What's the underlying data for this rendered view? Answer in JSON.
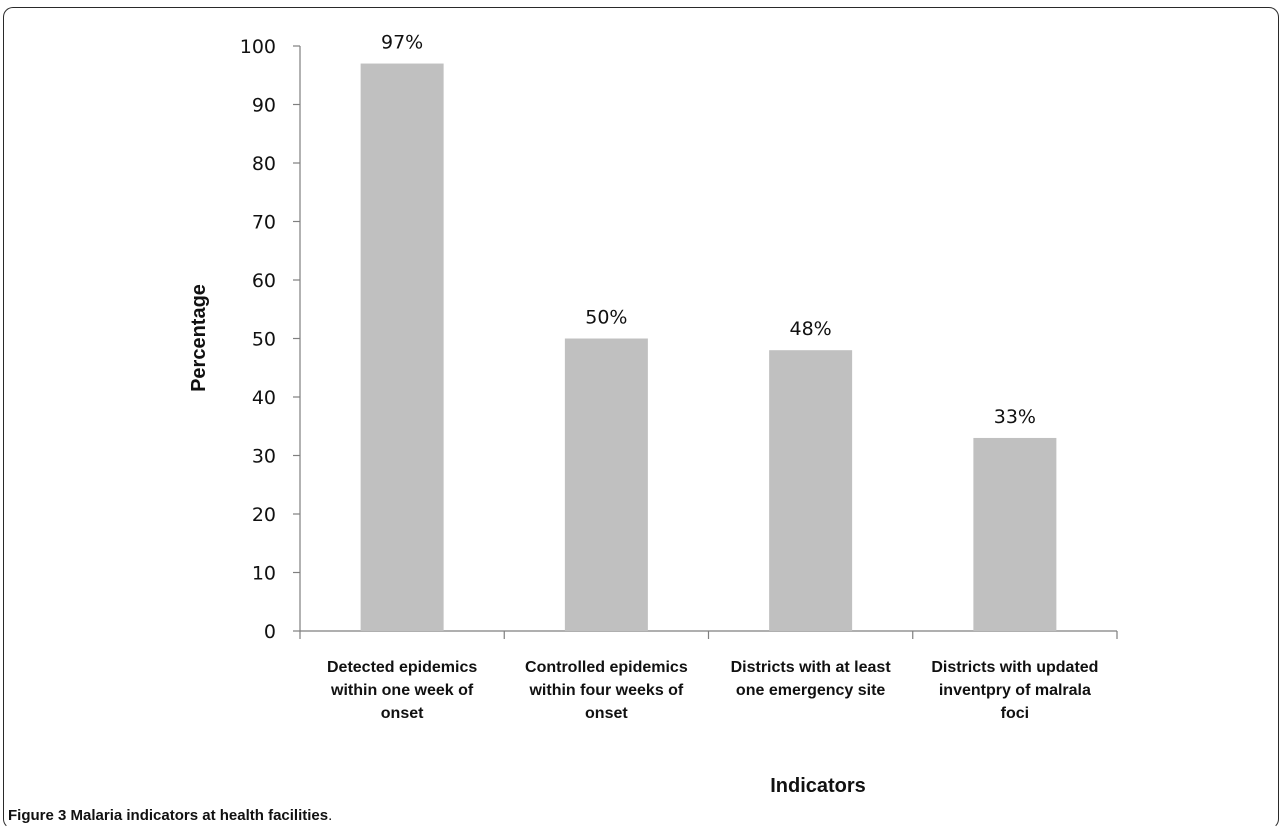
{
  "chart_data": {
    "type": "bar",
    "categories": [
      [
        "Detected epidemics",
        "within one week of",
        "onset"
      ],
      [
        "Controlled epidemics",
        "within four weeks of",
        "onset"
      ],
      [
        "Districts with at least",
        "one emergency site"
      ],
      [
        "Districts with updated",
        "inventpry of malrala",
        "foci"
      ]
    ],
    "values": [
      97,
      50,
      48,
      33
    ],
    "data_labels": [
      "97%",
      "50%",
      "48%",
      "33%"
    ],
    "xlabel": "Indicators",
    "ylabel": "Percentage",
    "ylim": [
      0,
      100
    ],
    "yticks": [
      0,
      10,
      20,
      30,
      40,
      50,
      60,
      70,
      80,
      90,
      100
    ],
    "bar_color": "#c0c0c0",
    "grid": false
  },
  "caption": {
    "label": "Figure 3",
    "text": "Malaria indicators at health facilities",
    "end": "."
  }
}
